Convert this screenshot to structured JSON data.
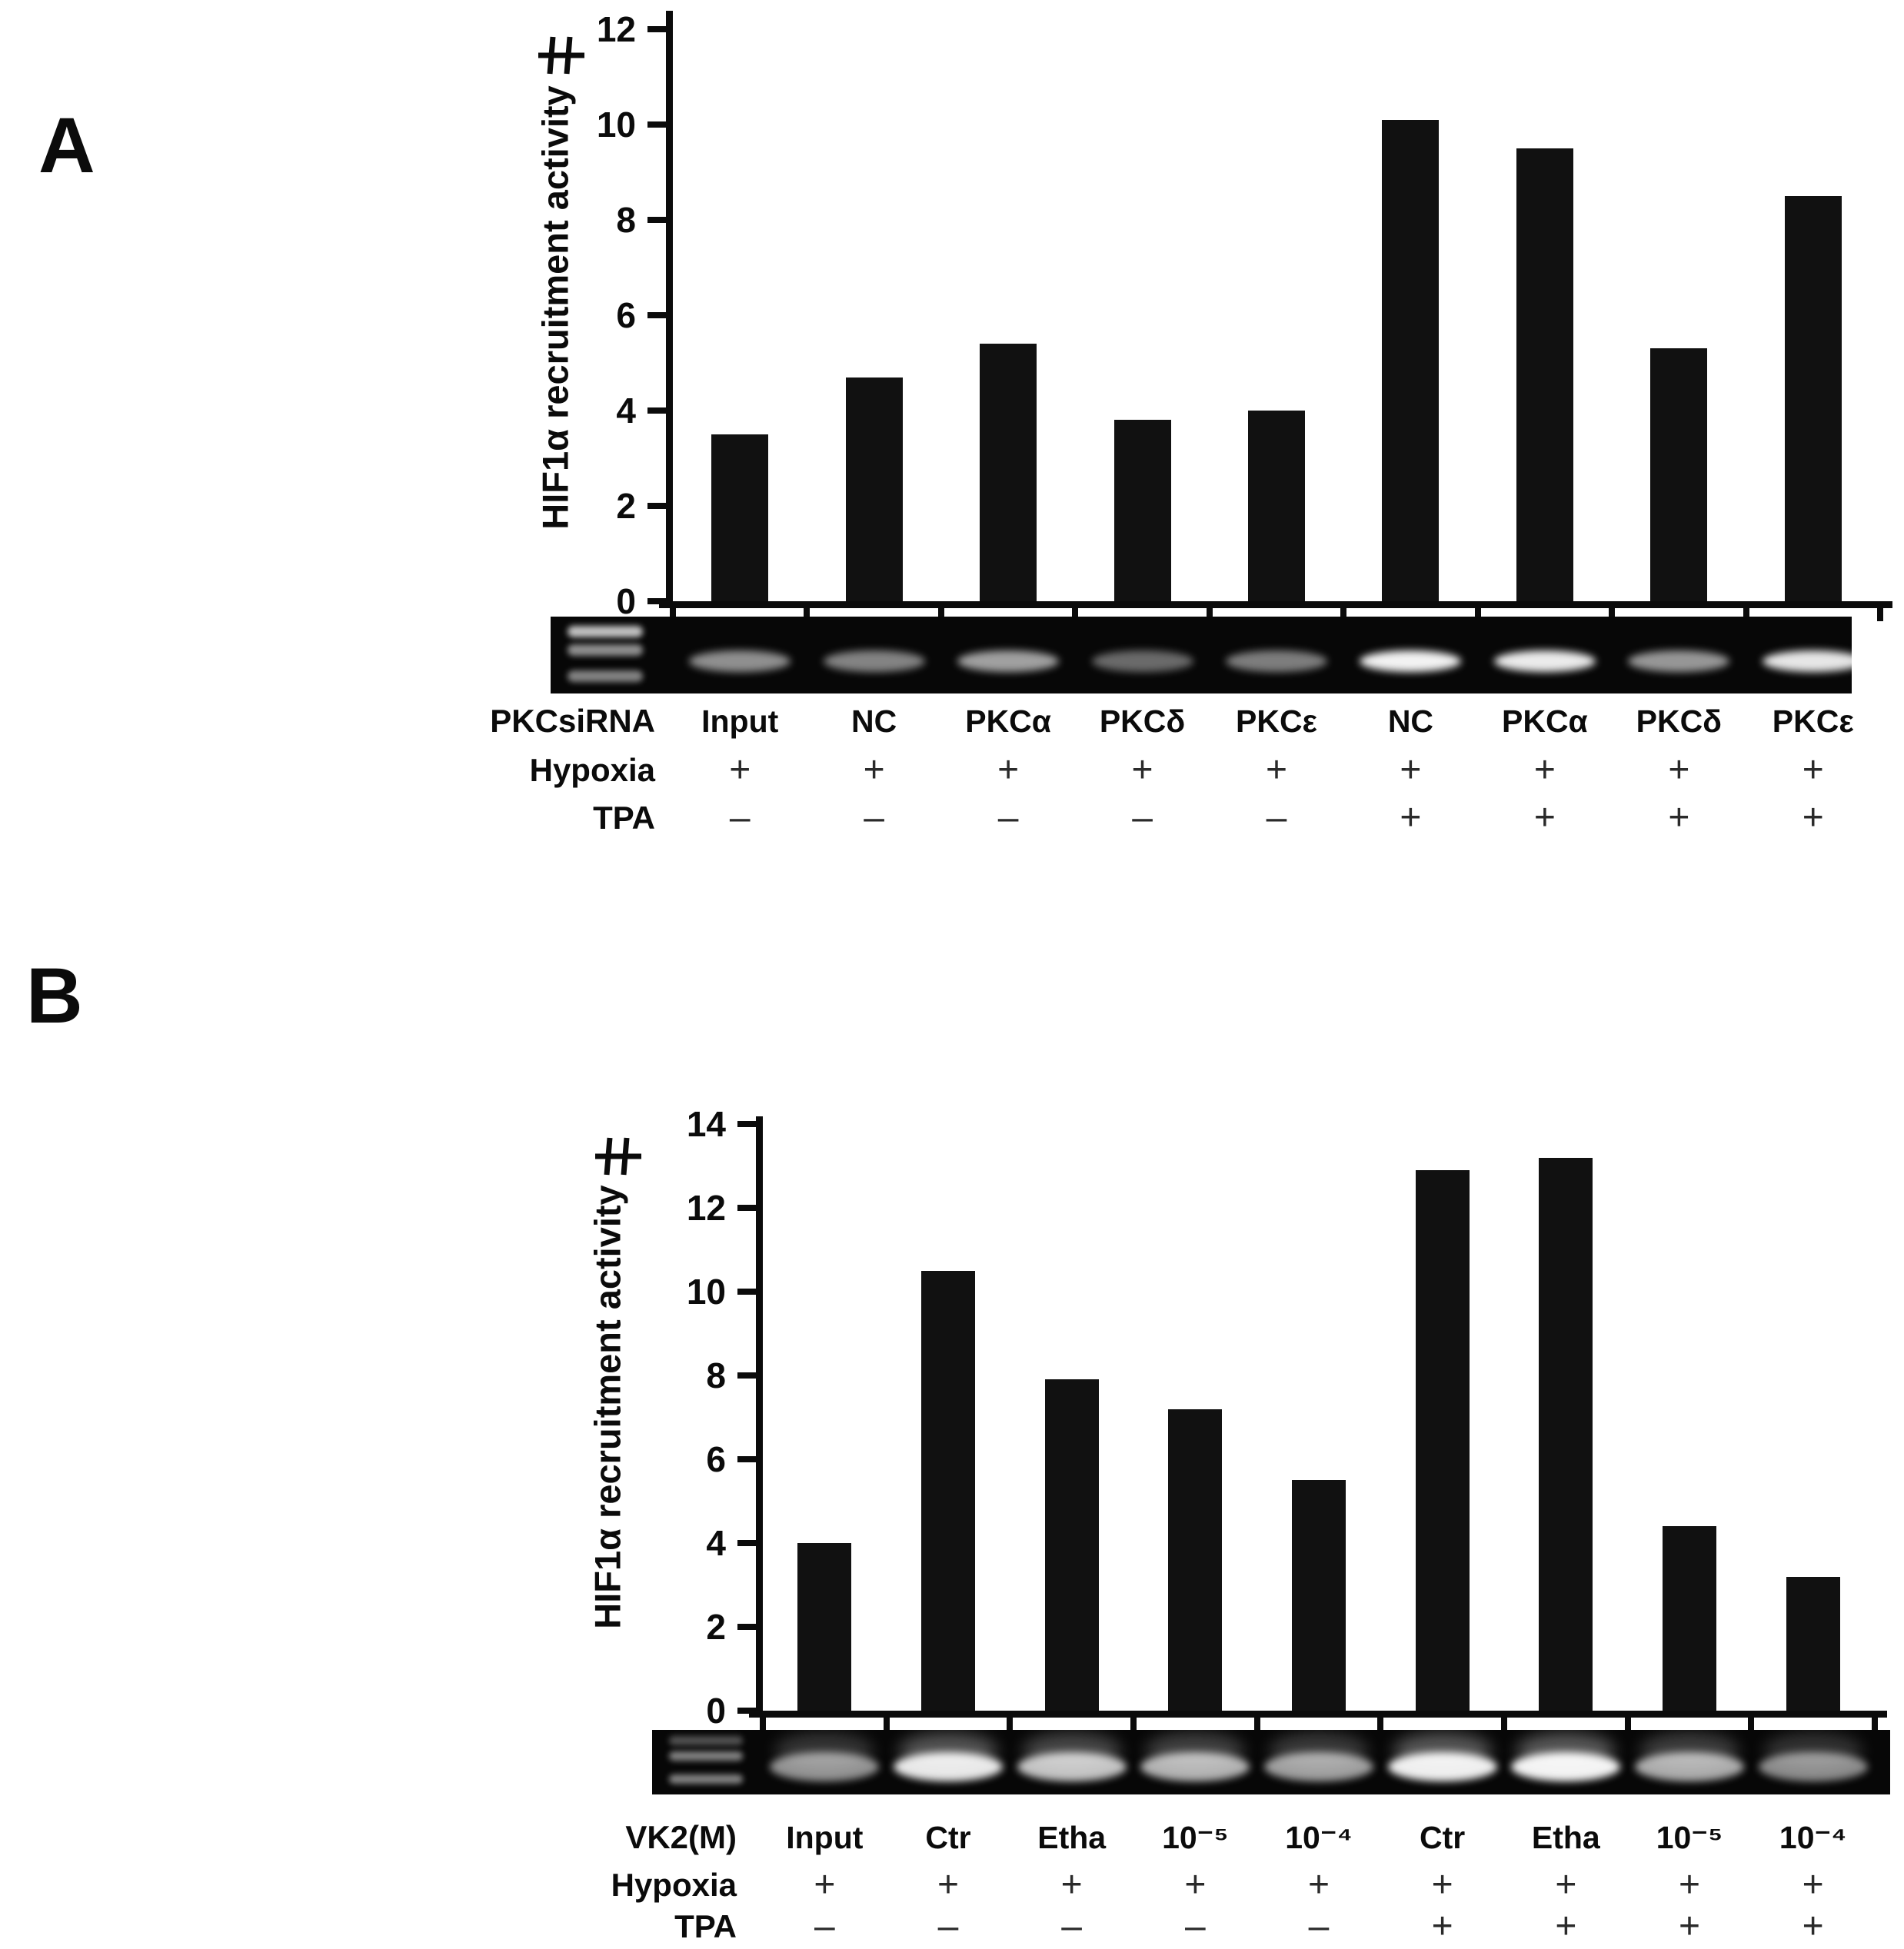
{
  "figure": {
    "background": "#ffffff",
    "bar_color": "#111111",
    "axis_color": "#0b0b0b",
    "text_color": "#0b0b0b",
    "gel_background": "#070707",
    "gel_band_color": "#ffffff"
  },
  "chart_data": [
    {
      "type": "bar",
      "panel_letter": "A",
      "ylabel": "HIF1α recruitment activity",
      "xlabel": "",
      "title": "",
      "ylim": [
        0,
        12
      ],
      "ytick_step": 2,
      "yticks": [
        0,
        2,
        4,
        6,
        8,
        10,
        12
      ],
      "axis_break_marker": true,
      "grid": false,
      "legend": "none",
      "categories": [
        "Input",
        "NC",
        "PKCα",
        "PKCδ",
        "PKCε",
        "NC",
        "PKCα",
        "PKCδ",
        "PKCε"
      ],
      "values": [
        3.5,
        4.7,
        5.4,
        3.8,
        4.0,
        10.1,
        9.5,
        5.3,
        8.5
      ],
      "lane_header": "PKCsiRNA",
      "condition_rows": [
        {
          "header": "Hypoxia",
          "values": [
            "+",
            "+",
            "+",
            "+",
            "+",
            "+",
            "+",
            "+",
            "+"
          ]
        },
        {
          "header": "TPA",
          "values": [
            "–",
            "–",
            "–",
            "–",
            "–",
            "+",
            "+",
            "+",
            "+"
          ]
        }
      ],
      "gel": {
        "ladder_band_intensity": [
          0.75,
          0.55,
          0.5
        ],
        "lane_band_intensity": [
          0.55,
          0.5,
          0.62,
          0.4,
          0.48,
          0.95,
          0.92,
          0.58,
          0.9
        ]
      }
    },
    {
      "type": "bar",
      "panel_letter": "B",
      "ylabel": "HIF1α recruitment activity",
      "xlabel": "",
      "title": "",
      "ylim": [
        0,
        14
      ],
      "ytick_step": 2,
      "yticks": [
        0,
        2,
        4,
        6,
        8,
        10,
        12,
        14
      ],
      "axis_break_marker": true,
      "grid": false,
      "legend": "none",
      "categories": [
        "Input",
        "Ctr",
        "Etha",
        "10⁻⁵",
        "10⁻⁴",
        "Ctr",
        "Etha",
        "10⁻⁵",
        "10⁻⁴"
      ],
      "values": [
        4.0,
        10.5,
        7.9,
        7.2,
        5.5,
        12.9,
        13.2,
        4.4,
        3.2
      ],
      "lane_header": "VK2(M)",
      "condition_rows": [
        {
          "header": "Hypoxia",
          "values": [
            "+",
            "+",
            "+",
            "+",
            "+",
            "+",
            "+",
            "+",
            "+"
          ]
        },
        {
          "header": "TPA",
          "values": [
            "–",
            "–",
            "–",
            "–",
            "–",
            "+",
            "+",
            "+",
            "+"
          ]
        }
      ],
      "gel": {
        "ladder_band_intensity": [
          0.3,
          0.5,
          0.5
        ],
        "lane_band_intensity": [
          0.55,
          0.9,
          0.75,
          0.68,
          0.6,
          0.93,
          0.95,
          0.65,
          0.52
        ]
      }
    }
  ]
}
